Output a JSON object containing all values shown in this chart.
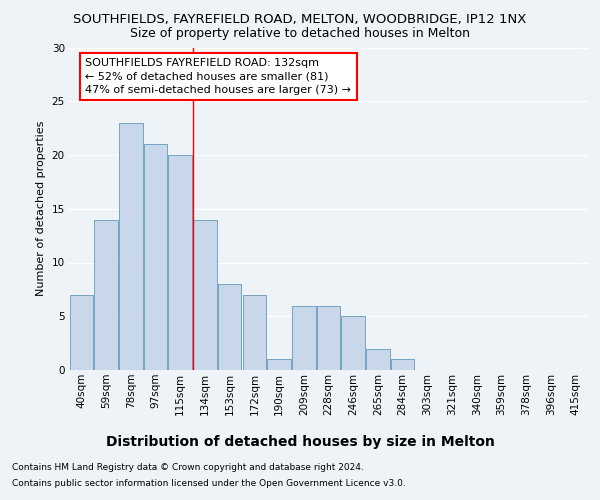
{
  "title1": "SOUTHFIELDS, FAYREFIELD ROAD, MELTON, WOODBRIDGE, IP12 1NX",
  "title2": "Size of property relative to detached houses in Melton",
  "xlabel": "Distribution of detached houses by size in Melton",
  "ylabel": "Number of detached properties",
  "categories": [
    "40sqm",
    "59sqm",
    "78sqm",
    "97sqm",
    "115sqm",
    "134sqm",
    "153sqm",
    "172sqm",
    "190sqm",
    "209sqm",
    "228sqm",
    "246sqm",
    "265sqm",
    "284sqm",
    "303sqm",
    "321sqm",
    "340sqm",
    "359sqm",
    "378sqm",
    "396sqm",
    "415sqm"
  ],
  "values": [
    7,
    14,
    23,
    21,
    20,
    14,
    8,
    7,
    1,
    6,
    6,
    5,
    2,
    1,
    0,
    0,
    0,
    0,
    0,
    0,
    0
  ],
  "bar_color": "#c8d8ea",
  "bar_edge_color": "#6699bb",
  "red_line_x": 4.5,
  "annotation_title": "SOUTHFIELDS FAYREFIELD ROAD: 132sqm",
  "annotation_line1": "← 52% of detached houses are smaller (81)",
  "annotation_line2": "47% of semi-detached houses are larger (73) →",
  "ylim": [
    0,
    30
  ],
  "yticks": [
    0,
    5,
    10,
    15,
    20,
    25,
    30
  ],
  "footnote1": "Contains HM Land Registry data © Crown copyright and database right 2024.",
  "footnote2": "Contains public sector information licensed under the Open Government Licence v3.0.",
  "background_color": "#eef3f8",
  "grid_color": "#ffffff",
  "title1_fontsize": 9.5,
  "title2_fontsize": 9,
  "xlabel_fontsize": 10,
  "ylabel_fontsize": 8,
  "tick_fontsize": 7.5,
  "annotation_fontsize": 8,
  "footnote_fontsize": 6.5
}
